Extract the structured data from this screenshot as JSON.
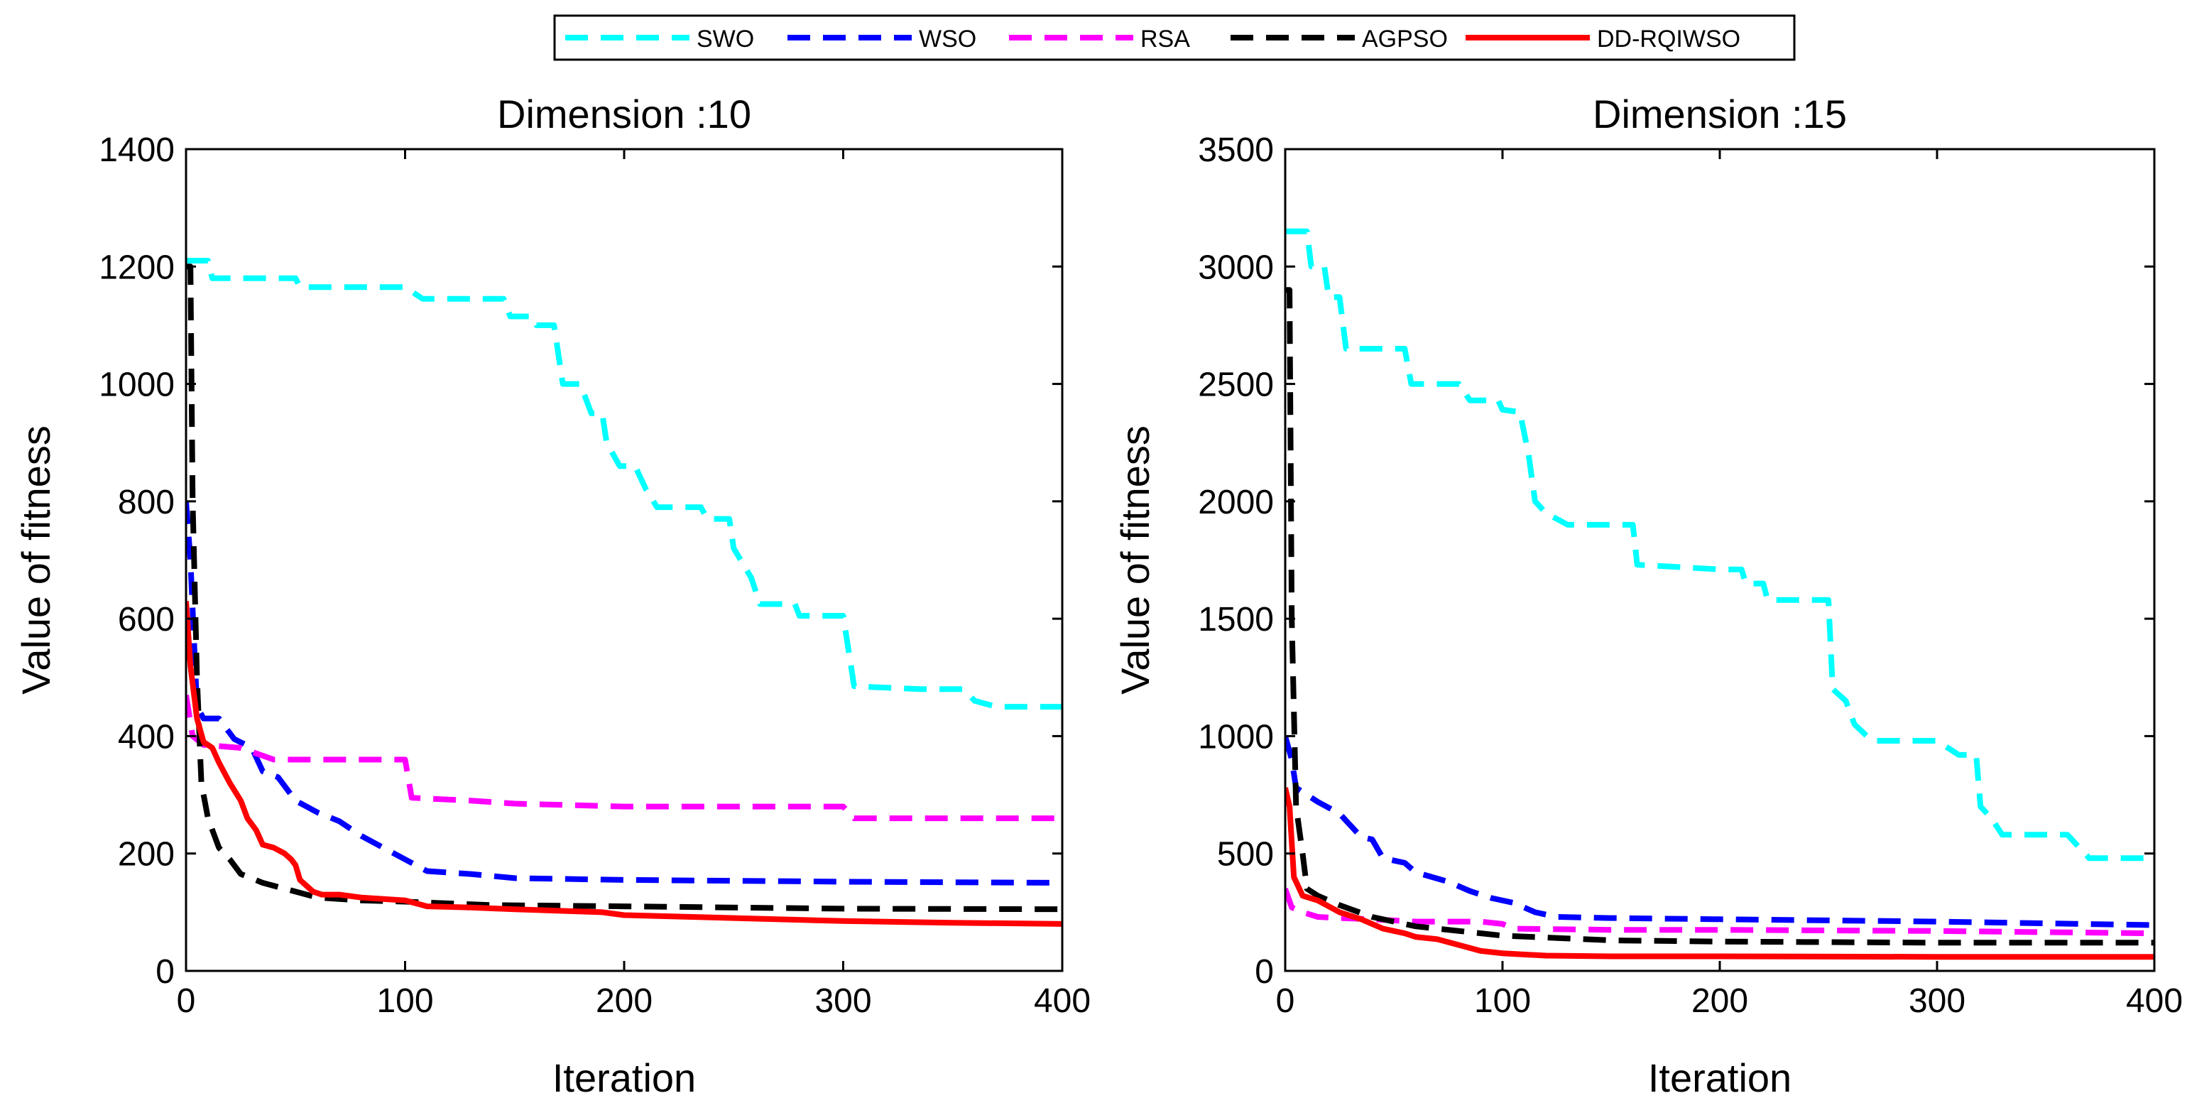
{
  "legend": {
    "placement": "top-center",
    "entries": [
      {
        "name": "SWO",
        "color": "#00ffff",
        "dashed": true
      },
      {
        "name": "WSO",
        "color": "#0000ff",
        "dashed": true
      },
      {
        "name": "RSA",
        "color": "#ff00ff",
        "dashed": true
      },
      {
        "name": "AGPSO",
        "color": "#000000",
        "dashed": true
      },
      {
        "name": "DD-RQIWSO",
        "color": "#ff0000",
        "dashed": false
      }
    ]
  },
  "chart_data": [
    {
      "type": "line",
      "title": "Dimension :10",
      "xlabel": "Iteration",
      "ylabel": "Value of fitness",
      "xlim": [
        0,
        400
      ],
      "ylim": [
        0,
        1400
      ],
      "xticks": [
        "0",
        "100",
        "200",
        "300",
        "400"
      ],
      "yticks": [
        "0",
        "200",
        "400",
        "600",
        "800",
        "1000",
        "1200",
        "1400"
      ],
      "series": [
        {
          "name": "SWO",
          "points": [
            [
              0,
              1210
            ],
            [
              10,
              1210
            ],
            [
              12,
              1180
            ],
            [
              50,
              1180
            ],
            [
              52,
              1165
            ],
            [
              100,
              1165
            ],
            [
              108,
              1145
            ],
            [
              145,
              1145
            ],
            [
              148,
              1115
            ],
            [
              158,
              1115
            ],
            [
              160,
              1100
            ],
            [
              168,
              1100
            ],
            [
              172,
              1000
            ],
            [
              180,
              1000
            ],
            [
              185,
              950
            ],
            [
              190,
              950
            ],
            [
              192,
              900
            ],
            [
              198,
              860
            ],
            [
              205,
              860
            ],
            [
              210,
              820
            ],
            [
              215,
              790
            ],
            [
              235,
              790
            ],
            [
              238,
              770
            ],
            [
              248,
              770
            ],
            [
              250,
              720
            ],
            [
              258,
              670
            ],
            [
              262,
              625
            ],
            [
              278,
              625
            ],
            [
              280,
              605
            ],
            [
              300,
              605
            ],
            [
              305,
              485
            ],
            [
              335,
              480
            ],
            [
              355,
              480
            ],
            [
              360,
              460
            ],
            [
              370,
              450
            ],
            [
              400,
              450
            ]
          ]
        },
        {
          "name": "WSO",
          "points": [
            [
              0,
              800
            ],
            [
              2,
              700
            ],
            [
              5,
              450
            ],
            [
              8,
              430
            ],
            [
              15,
              430
            ],
            [
              22,
              395
            ],
            [
              30,
              380
            ],
            [
              35,
              340
            ],
            [
              42,
              330
            ],
            [
              50,
              290
            ],
            [
              60,
              270
            ],
            [
              70,
              255
            ],
            [
              80,
              230
            ],
            [
              90,
              210
            ],
            [
              100,
              190
            ],
            [
              110,
              170
            ],
            [
              130,
              165
            ],
            [
              150,
              158
            ],
            [
              200,
              155
            ],
            [
              300,
              152
            ],
            [
              400,
              150
            ]
          ]
        },
        {
          "name": "RSA",
          "points": [
            [
              0,
              470
            ],
            [
              3,
              400
            ],
            [
              8,
              385
            ],
            [
              25,
              380
            ],
            [
              40,
              360
            ],
            [
              100,
              360
            ],
            [
              103,
              295
            ],
            [
              130,
              290
            ],
            [
              150,
              285
            ],
            [
              200,
              280
            ],
            [
              300,
              280
            ],
            [
              305,
              260
            ],
            [
              400,
              260
            ]
          ]
        },
        {
          "name": "AGPSO",
          "points": [
            [
              0,
              1200
            ],
            [
              2,
              1200
            ],
            [
              3,
              800
            ],
            [
              5,
              500
            ],
            [
              7,
              320
            ],
            [
              10,
              260
            ],
            [
              15,
              210
            ],
            [
              20,
              190
            ],
            [
              25,
              165
            ],
            [
              35,
              150
            ],
            [
              50,
              135
            ],
            [
              60,
              125
            ],
            [
              80,
              120
            ],
            [
              100,
              118
            ],
            [
              140,
              112
            ],
            [
              200,
              110
            ],
            [
              300,
              106
            ],
            [
              400,
              105
            ]
          ]
        },
        {
          "name": "DD-RQIWSO",
          "points": [
            [
              0,
              630
            ],
            [
              2,
              520
            ],
            [
              5,
              430
            ],
            [
              8,
              390
            ],
            [
              12,
              380
            ],
            [
              15,
              355
            ],
            [
              20,
              320
            ],
            [
              25,
              290
            ],
            [
              28,
              260
            ],
            [
              32,
              240
            ],
            [
              35,
              215
            ],
            [
              40,
              210
            ],
            [
              45,
              200
            ],
            [
              48,
              190
            ],
            [
              50,
              180
            ],
            [
              52,
              155
            ],
            [
              58,
              135
            ],
            [
              62,
              130
            ],
            [
              70,
              130
            ],
            [
              80,
              125
            ],
            [
              100,
              120
            ],
            [
              110,
              110
            ],
            [
              130,
              108
            ],
            [
              150,
              105
            ],
            [
              190,
              100
            ],
            [
              200,
              95
            ],
            [
              250,
              90
            ],
            [
              300,
              85
            ],
            [
              350,
              82
            ],
            [
              400,
              80
            ]
          ]
        }
      ]
    },
    {
      "type": "line",
      "title": "Dimension :15",
      "xlabel": "Iteration",
      "ylabel": "Value of fitness",
      "xlim": [
        0,
        400
      ],
      "ylim": [
        0,
        3500
      ],
      "xticks": [
        "0",
        "100",
        "200",
        "300",
        "400"
      ],
      "yticks": [
        "0",
        "500",
        "1000",
        "1500",
        "2000",
        "2500",
        "3000",
        "3500"
      ],
      "series": [
        {
          "name": "SWO",
          "points": [
            [
              0,
              3150
            ],
            [
              10,
              3150
            ],
            [
              12,
              3000
            ],
            [
              18,
              3000
            ],
            [
              20,
              2870
            ],
            [
              25,
              2870
            ],
            [
              28,
              2650
            ],
            [
              55,
              2650
            ],
            [
              58,
              2500
            ],
            [
              80,
              2500
            ],
            [
              85,
              2430
            ],
            [
              98,
              2430
            ],
            [
              100,
              2390
            ],
            [
              108,
              2380
            ],
            [
              112,
              2200
            ],
            [
              115,
              2000
            ],
            [
              120,
              1950
            ],
            [
              130,
              1900
            ],
            [
              160,
              1900
            ],
            [
              162,
              1730
            ],
            [
              200,
              1710
            ],
            [
              210,
              1710
            ],
            [
              212,
              1650
            ],
            [
              220,
              1650
            ],
            [
              222,
              1580
            ],
            [
              250,
              1580
            ],
            [
              252,
              1200
            ],
            [
              258,
              1150
            ],
            [
              262,
              1050
            ],
            [
              270,
              980
            ],
            [
              300,
              980
            ],
            [
              310,
              920
            ],
            [
              318,
              920
            ],
            [
              320,
              700
            ],
            [
              325,
              650
            ],
            [
              330,
              580
            ],
            [
              360,
              580
            ],
            [
              370,
              480
            ],
            [
              400,
              480
            ]
          ]
        },
        {
          "name": "WSO",
          "points": [
            [
              0,
              1000
            ],
            [
              3,
              900
            ],
            [
              5,
              780
            ],
            [
              15,
              720
            ],
            [
              25,
              670
            ],
            [
              35,
              570
            ],
            [
              40,
              560
            ],
            [
              45,
              480
            ],
            [
              55,
              460
            ],
            [
              60,
              420
            ],
            [
              75,
              380
            ],
            [
              85,
              340
            ],
            [
              95,
              310
            ],
            [
              105,
              290
            ],
            [
              115,
              250
            ],
            [
              125,
              230
            ],
            [
              150,
              225
            ],
            [
              200,
              220
            ],
            [
              250,
              215
            ],
            [
              300,
              210
            ],
            [
              400,
              195
            ]
          ]
        },
        {
          "name": "RSA",
          "points": [
            [
              0,
              350
            ],
            [
              3,
              270
            ],
            [
              8,
              250
            ],
            [
              15,
              230
            ],
            [
              25,
              225
            ],
            [
              40,
              220
            ],
            [
              60,
              210
            ],
            [
              90,
              210
            ],
            [
              100,
              200
            ],
            [
              105,
              180
            ],
            [
              150,
              175
            ],
            [
              200,
              175
            ],
            [
              300,
              170
            ],
            [
              400,
              160
            ]
          ]
        },
        {
          "name": "AGPSO",
          "points": [
            [
              0,
              2900
            ],
            [
              2,
              2900
            ],
            [
              3,
              1500
            ],
            [
              5,
              700
            ],
            [
              8,
              500
            ],
            [
              10,
              350
            ],
            [
              15,
              320
            ],
            [
              25,
              280
            ],
            [
              40,
              230
            ],
            [
              60,
              190
            ],
            [
              80,
              170
            ],
            [
              100,
              150
            ],
            [
              150,
              130
            ],
            [
              200,
              125
            ],
            [
              300,
              120
            ],
            [
              400,
              120
            ]
          ]
        },
        {
          "name": "DD-RQIWSO",
          "points": [
            [
              0,
              780
            ],
            [
              2,
              700
            ],
            [
              4,
              400
            ],
            [
              8,
              320
            ],
            [
              15,
              300
            ],
            [
              25,
              250
            ],
            [
              35,
              220
            ],
            [
              45,
              180
            ],
            [
              55,
              160
            ],
            [
              60,
              145
            ],
            [
              70,
              135
            ],
            [
              80,
              110
            ],
            [
              90,
              85
            ],
            [
              100,
              75
            ],
            [
              120,
              65
            ],
            [
              150,
              62
            ],
            [
              200,
              62
            ],
            [
              300,
              60
            ],
            [
              400,
              60
            ]
          ]
        }
      ]
    }
  ]
}
